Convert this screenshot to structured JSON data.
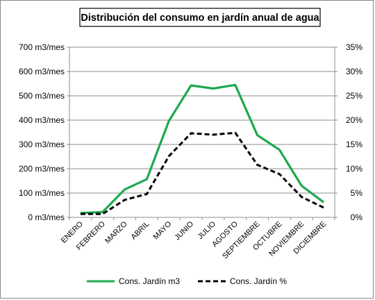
{
  "chart_data": {
    "type": "line",
    "title": "Distribución del consumo en jardín anual de agua",
    "categories": [
      "ENERO",
      "FEBRERO",
      "MARZO",
      "ABRIL",
      "MAYO",
      "JUNIO",
      "JULIO",
      "AGOSTO",
      "SEPTIEMBRE",
      "OCTUBRE",
      "NOVIEMBRE",
      "DICIEMBRE"
    ],
    "y_left": {
      "ticks": [
        "0 m3/mes",
        "100 m3/mes",
        "200 m3/mes",
        "300 m3/mes",
        "400 m3/mes",
        "500 m3/mes",
        "600 m3/mes",
        "700 m3/mes"
      ],
      "ylim": [
        0,
        700
      ]
    },
    "y_right": {
      "ticks": [
        "0%",
        "5%",
        "10%",
        "15%",
        "20%",
        "25%",
        "30%",
        "35%"
      ],
      "ylim": [
        0,
        35
      ]
    },
    "series": [
      {
        "name": "Cons. Jardín m3",
        "axis": "left",
        "color": "#1ea84f",
        "style": "solid",
        "values": [
          18,
          22,
          115,
          157,
          397,
          543,
          530,
          545,
          338,
          278,
          130,
          62
        ]
      },
      {
        "name": "Cons. Jardín %",
        "axis": "right",
        "color": "#000000",
        "style": "dashed",
        "values": [
          0.7,
          0.7,
          3.6,
          4.8,
          12.6,
          17.3,
          17.0,
          17.4,
          10.8,
          8.9,
          4.2,
          2.0
        ]
      }
    ],
    "grid": true,
    "legend_position": "bottom"
  }
}
